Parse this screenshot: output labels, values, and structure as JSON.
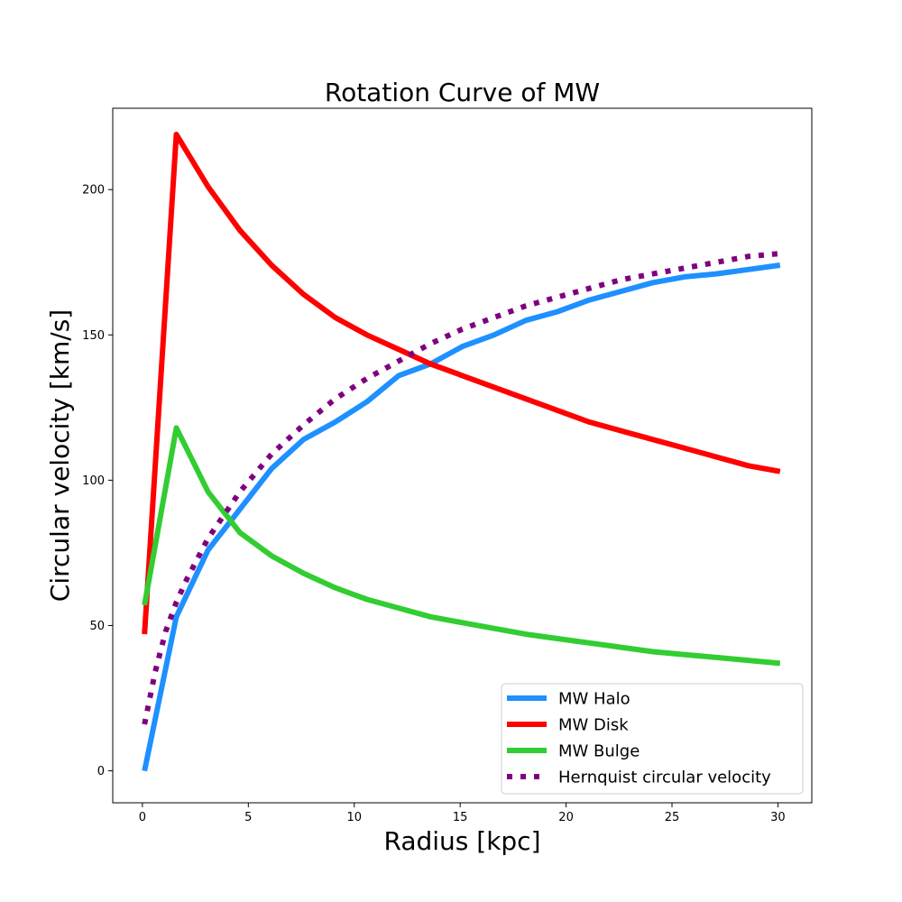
{
  "chart_data": {
    "type": "line",
    "title": "Rotation Curve of MW",
    "xlabel": "Radius [kpc]",
    "ylabel": "Circular velocity [km/s]",
    "xlim": [
      -1.4,
      31.6
    ],
    "ylim": [
      -11,
      228
    ],
    "xticks": [
      0,
      5,
      10,
      15,
      20,
      25,
      30
    ],
    "yticks": [
      0,
      50,
      100,
      150,
      200
    ],
    "grid": false,
    "legend_position": "lower-right",
    "series": [
      {
        "name": "MW Halo",
        "color": "#1e90ff",
        "style": "solid",
        "x": [
          0.1,
          1.6,
          3.1,
          4.6,
          6.1,
          7.6,
          9.1,
          10.6,
          12.1,
          13.6,
          15.1,
          16.6,
          18.1,
          19.6,
          21.1,
          22.6,
          24.1,
          25.6,
          27.1,
          28.6,
          30.1
        ],
        "y": [
          0,
          53,
          76,
          90,
          104,
          114,
          120,
          127,
          136,
          140,
          146,
          150,
          155,
          158,
          162,
          165,
          168,
          170,
          171,
          172.5,
          174
        ]
      },
      {
        "name": "MW Disk",
        "color": "#ff0000",
        "style": "solid",
        "x": [
          0.1,
          1.6,
          3.1,
          4.6,
          6.1,
          7.6,
          9.1,
          10.6,
          12.1,
          13.6,
          15.1,
          16.6,
          18.1,
          19.6,
          21.1,
          22.6,
          24.1,
          25.6,
          27.1,
          28.6,
          30.1
        ],
        "y": [
          47,
          219,
          201,
          186,
          174,
          164,
          156,
          150,
          145,
          140,
          136,
          132,
          128,
          124,
          120,
          117,
          114,
          111,
          108,
          105,
          103
        ]
      },
      {
        "name": "MW Bulge",
        "color": "#32cd32",
        "style": "solid",
        "x": [
          0.1,
          1.6,
          3.1,
          4.6,
          6.1,
          7.6,
          9.1,
          10.6,
          12.1,
          13.6,
          15.1,
          16.6,
          18.1,
          19.6,
          21.1,
          22.6,
          24.1,
          25.6,
          27.1,
          28.6,
          30.1
        ],
        "y": [
          57,
          118,
          96,
          82,
          74,
          68,
          63,
          59,
          56,
          53,
          51,
          49,
          47,
          45.5,
          44,
          42.5,
          41,
          40,
          39,
          38,
          37
        ]
      },
      {
        "name": "Hernquist circular velocity",
        "color": "#800080",
        "style": "dotted",
        "x": [
          0.1,
          0.6,
          1.1,
          1.6,
          2.1,
          3.1,
          4.6,
          6.1,
          7.6,
          9.1,
          10.6,
          12.1,
          13.6,
          15.1,
          16.6,
          18.1,
          19.6,
          21.1,
          22.6,
          24.1,
          25.6,
          27.1,
          28.6,
          30.1
        ],
        "y": [
          16,
          34,
          48,
          58,
          66,
          80,
          96,
          109,
          119,
          128,
          135,
          141,
          147,
          152,
          156,
          160,
          163,
          166,
          169,
          171,
          173,
          175,
          177,
          178
        ]
      }
    ]
  }
}
